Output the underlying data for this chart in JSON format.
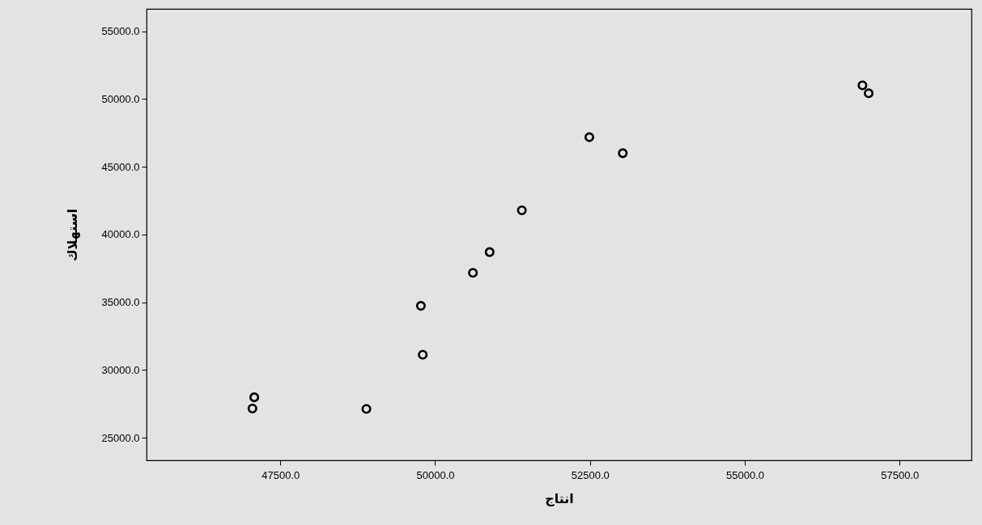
{
  "chart_data": {
    "type": "scatter",
    "xlabel": "انتاج",
    "ylabel": "استهلاك",
    "x": [
      47080,
      47050,
      48890,
      49800,
      49770,
      50610,
      50880,
      51400,
      52490,
      53030,
      56900,
      57000
    ],
    "series": [
      {
        "color": "#000000",
        "values": [
          27980,
          27150,
          27120,
          31120,
          34730,
          37170,
          38700,
          41780,
          47180,
          46000,
          51010,
          50420
        ]
      }
    ],
    "xlim": [
      45340,
      58660
    ],
    "ylim": [
      23330,
      56650
    ],
    "xticks": [
      {
        "value": 47500,
        "label": "47500.0"
      },
      {
        "value": 50000,
        "label": "50000.0"
      },
      {
        "value": 52500,
        "label": "52500.0"
      },
      {
        "value": 55000,
        "label": "55000.0"
      },
      {
        "value": 57500,
        "label": "57500.0"
      }
    ],
    "yticks": [
      {
        "value": 25000,
        "label": "25000.0"
      },
      {
        "value": 30000,
        "label": "30000.0"
      },
      {
        "value": 35000,
        "label": "35000.0"
      },
      {
        "value": 40000,
        "label": "40000.0"
      },
      {
        "value": 45000,
        "label": "45000.0"
      },
      {
        "value": 50000,
        "label": "50000.0"
      },
      {
        "value": 55000,
        "label": "55000.0"
      }
    ],
    "grid": false,
    "marker": "circle"
  }
}
